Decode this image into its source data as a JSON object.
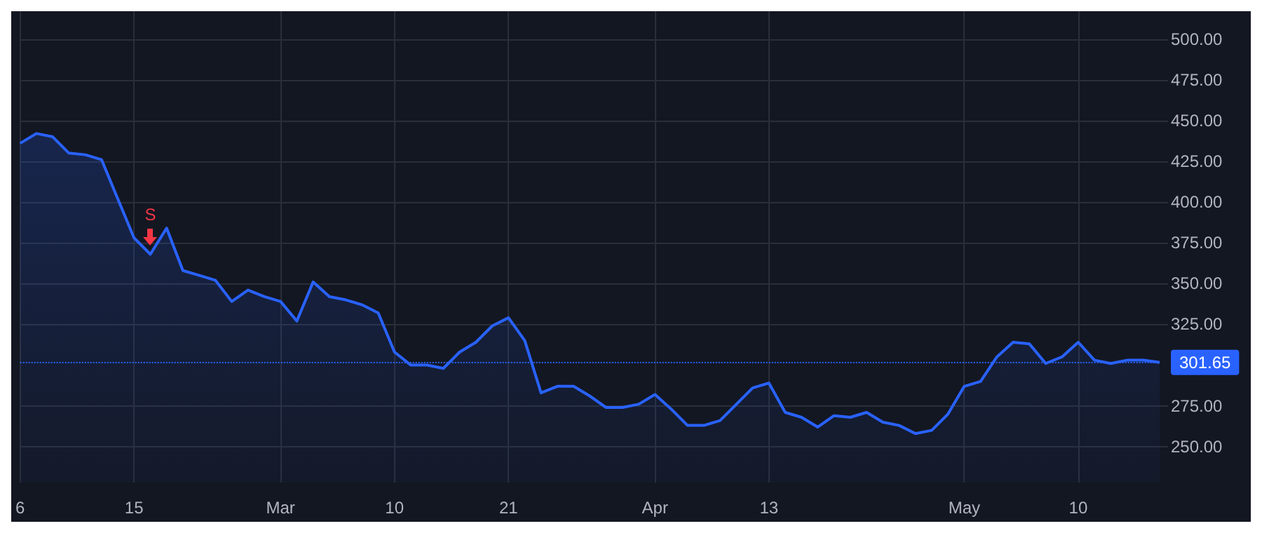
{
  "chart_data": {
    "type": "area",
    "categories": [
      "6",
      null,
      null,
      null,
      null,
      null,
      null,
      "15",
      null,
      null,
      null,
      null,
      null,
      null,
      null,
      null,
      "Mar",
      null,
      null,
      null,
      null,
      null,
      null,
      "10",
      null,
      null,
      null,
      null,
      null,
      null,
      "21",
      null,
      null,
      null,
      null,
      null,
      null,
      null,
      null,
      "Apr",
      null,
      null,
      null,
      null,
      null,
      null,
      "13",
      null,
      null,
      null,
      null,
      null,
      null,
      null,
      null,
      null,
      null,
      null,
      "May",
      null,
      null,
      null,
      null,
      null,
      null,
      "10",
      null,
      null,
      null,
      null,
      null
    ],
    "series": [
      {
        "color": "#2962ff",
        "values": [
          436,
          442,
          440,
          430,
          429,
          426,
          402,
          378,
          368,
          384,
          358,
          355,
          352,
          339,
          346,
          342,
          339,
          327,
          351,
          342,
          340,
          337,
          332,
          308,
          300,
          300,
          298,
          308,
          314,
          324,
          329,
          315,
          283,
          287,
          287,
          281,
          274,
          274,
          276,
          282,
          273,
          263,
          263,
          266,
          276,
          286,
          289,
          271,
          268,
          262,
          269,
          268,
          271,
          265,
          263,
          258,
          260,
          270,
          287,
          290,
          305,
          314,
          313,
          301,
          305,
          314,
          303,
          301,
          303,
          303,
          301.65
        ]
      }
    ],
    "ylim": [
      228,
      517
    ],
    "yticks": [
      {
        "value": 250,
        "label": "250.00"
      },
      {
        "value": 275,
        "label": "275.00"
      },
      {
        "value": 325,
        "label": "325.00"
      },
      {
        "value": 350,
        "label": "350.00"
      },
      {
        "value": 375,
        "label": "375.00"
      },
      {
        "value": 400,
        "label": "400.00"
      },
      {
        "value": 425,
        "label": "425.00"
      },
      {
        "value": 450,
        "label": "450.00"
      },
      {
        "value": 475,
        "label": "475.00"
      },
      {
        "value": 500,
        "label": "500.00"
      }
    ],
    "ref_lines": [
      {
        "axis": "y",
        "value": 301.65,
        "label": "301.65",
        "color": "#2962ff",
        "line_style": "dotted"
      }
    ],
    "annotations": [
      {
        "text": "S",
        "y": 368
      }
    ],
    "grid": true
  }
}
